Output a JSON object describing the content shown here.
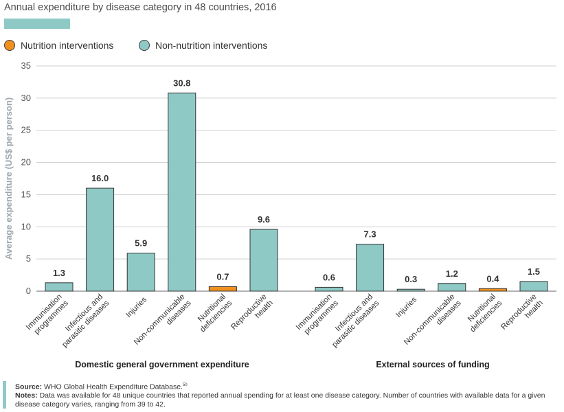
{
  "title": "Annual expenditure by disease category in 48 countries, 2016",
  "legend": {
    "items": [
      {
        "label": "Nutrition interventions",
        "color": "#f0901e"
      },
      {
        "label": "Non-nutrition interventions",
        "color": "#8ec9c6"
      }
    ]
  },
  "chart_data": {
    "type": "bar",
    "ylabel": "Average expenditure (US$ per person)",
    "ylim": [
      0,
      35
    ],
    "yticks": [
      0,
      5,
      10,
      15,
      20,
      25,
      30,
      35
    ],
    "grid": true,
    "legend_position": "top-left",
    "groups": [
      {
        "name": "Domestic general government expenditure",
        "categories": [
          "Immunisation programmes",
          "Infectious and parasitic diseases",
          "Injuries",
          "Non-communicable diseases",
          "Nutritional deficiencies",
          "Reproductive health"
        ],
        "category_lines": [
          [
            "Immunisation",
            "programmes"
          ],
          [
            "Infectious and",
            "parasitic diseases"
          ],
          [
            "Injuries"
          ],
          [
            "Non-communicable",
            "diseases"
          ],
          [
            "Nutritional",
            "deficiencies"
          ],
          [
            "Reproductive",
            "health"
          ]
        ],
        "values": [
          1.3,
          16.0,
          5.9,
          30.8,
          0.7,
          9.6
        ],
        "labels": [
          "1.3",
          "16.0",
          "5.9",
          "30.8",
          "0.7",
          "9.6"
        ],
        "series": [
          "Non-nutrition interventions",
          "Non-nutrition interventions",
          "Non-nutrition interventions",
          "Non-nutrition interventions",
          "Nutrition interventions",
          "Non-nutrition interventions"
        ]
      },
      {
        "name": "External sources of funding",
        "categories": [
          "Immunisation programmes",
          "Infectious and parasitic diseases",
          "Injuries",
          "Non-communicable diseases",
          "Nutritional deficiencies",
          "Reproductive health"
        ],
        "category_lines": [
          [
            "Immunisation",
            "programmes"
          ],
          [
            "Infectious and",
            "parasitic diseases"
          ],
          [
            "Injuries"
          ],
          [
            "Non-communicable",
            "diseases"
          ],
          [
            "Nutritional",
            "deficiencies"
          ],
          [
            "Reproductive",
            "health"
          ]
        ],
        "values": [
          0.6,
          7.3,
          0.3,
          1.2,
          0.4,
          1.5
        ],
        "labels": [
          "0.6",
          "7.3",
          "0.3",
          "1.2",
          "0.4",
          "1.5"
        ],
        "series": [
          "Non-nutrition interventions",
          "Non-nutrition interventions",
          "Non-nutrition interventions",
          "Non-nutrition interventions",
          "Nutrition interventions",
          "Non-nutrition interventions"
        ]
      }
    ]
  },
  "source": {
    "source_label": "Source:",
    "source_text": "WHO Global Health Expenditure Database.",
    "source_ref": "50",
    "notes_label": "Notes:",
    "notes_text": "Data was available for 48 unique countries that reported annual spending for at least one disease category. Number of countries with available data for a given disease category varies, ranging from 39 to 42."
  }
}
